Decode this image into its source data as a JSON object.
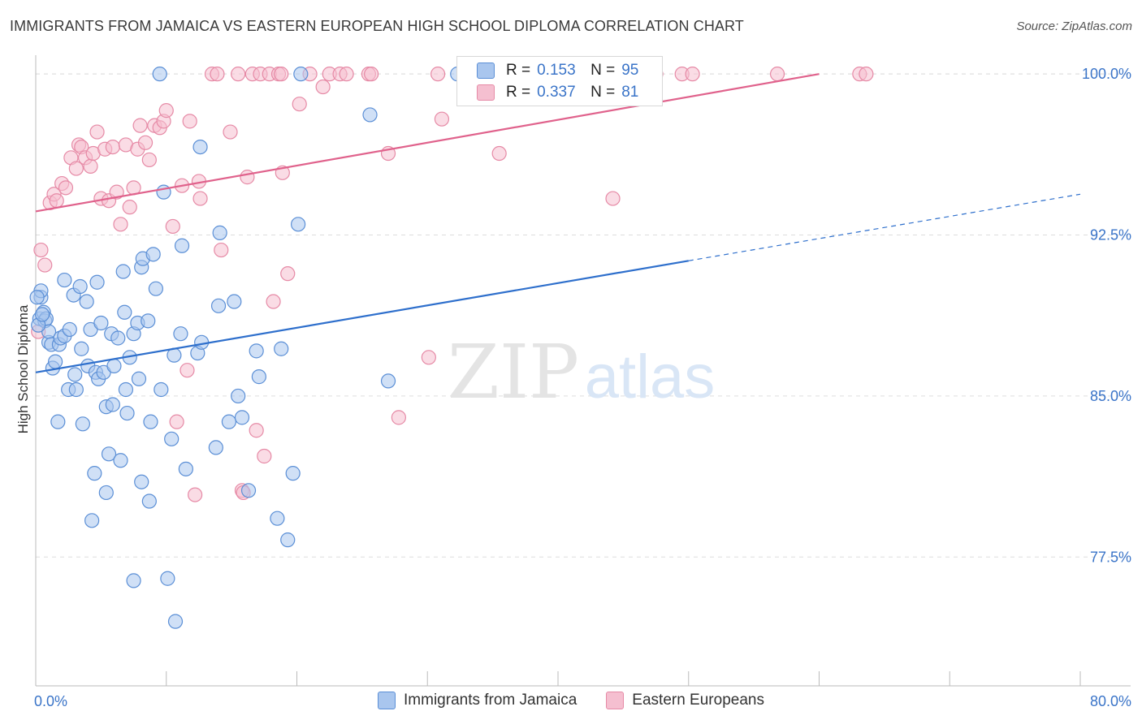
{
  "title": "IMMIGRANTS FROM JAMAICA VS EASTERN EUROPEAN HIGH SCHOOL DIPLOMA CORRELATION CHART",
  "source": "Source: ZipAtlas.com",
  "watermark": {
    "zip": "ZIP",
    "atlas": "atlas"
  },
  "colors": {
    "blue_fill": "#a9c6ee",
    "blue_stroke": "#5b8fd6",
    "blue_line": "#2e6fcc",
    "pink_fill": "#f5bfd0",
    "pink_stroke": "#e68aa6",
    "pink_line": "#e0628c",
    "tick_text": "#3a74c8",
    "grid": "#dddddd"
  },
  "stats": {
    "blue": {
      "r_label": "R =",
      "r_value": "0.153",
      "n_label": "N =",
      "n_value": "95"
    },
    "pink": {
      "r_label": "R =",
      "r_value": "0.337",
      "n_label": "N =",
      "n_value": "81"
    }
  },
  "legend": {
    "blue": "Immigrants from Jamaica",
    "pink": "Eastern Europeans"
  },
  "chart_data": {
    "type": "scatter",
    "title": "IMMIGRANTS FROM JAMAICA VS EASTERN EUROPEAN HIGH SCHOOL DIPLOMA CORRELATION CHART",
    "xlabel": "",
    "ylabel": "High School Diploma",
    "xlim": [
      0,
      80
    ],
    "ylim": [
      71.5,
      100.8
    ],
    "x_tick_labels": [
      "0.0%",
      "80.0%"
    ],
    "y_ticks": [
      77.5,
      85.0,
      92.5,
      100.0
    ],
    "y_tick_labels": [
      "77.5%",
      "85.0%",
      "92.5%",
      "100.0%"
    ],
    "grid": true,
    "legend_position": "bottom",
    "series": [
      {
        "name": "Immigrants from Jamaica",
        "color": "blue",
        "trend": {
          "x_start": 0,
          "y_start": 86.1,
          "x_solid_end": 50,
          "y_solid_end": 91.3,
          "x_end": 80,
          "y_end": 94.4
        },
        "points": [
          [
            0.3,
            88.6
          ],
          [
            0.4,
            89.6
          ],
          [
            0.4,
            89.9
          ],
          [
            0.6,
            88.9
          ],
          [
            0.7,
            88.5
          ],
          [
            0.8,
            88.6
          ],
          [
            1.0,
            87.5
          ],
          [
            1.0,
            88.0
          ],
          [
            1.2,
            87.4
          ],
          [
            1.3,
            86.3
          ],
          [
            1.5,
            86.6
          ],
          [
            1.7,
            83.8
          ],
          [
            1.8,
            87.4
          ],
          [
            1.9,
            87.7
          ],
          [
            2.2,
            90.4
          ],
          [
            2.2,
            87.8
          ],
          [
            2.5,
            85.3
          ],
          [
            2.6,
            88.1
          ],
          [
            2.9,
            89.7
          ],
          [
            3.0,
            86.0
          ],
          [
            3.1,
            85.3
          ],
          [
            3.4,
            90.1
          ],
          [
            3.5,
            87.2
          ],
          [
            3.6,
            83.7
          ],
          [
            3.9,
            89.4
          ],
          [
            4.0,
            86.4
          ],
          [
            4.2,
            88.1
          ],
          [
            4.3,
            79.2
          ],
          [
            4.5,
            81.4
          ],
          [
            4.6,
            86.1
          ],
          [
            4.7,
            90.3
          ],
          [
            4.8,
            85.8
          ],
          [
            5.0,
            88.4
          ],
          [
            5.2,
            86.1
          ],
          [
            5.4,
            84.5
          ],
          [
            5.4,
            80.5
          ],
          [
            5.6,
            82.3
          ],
          [
            5.8,
            87.9
          ],
          [
            5.9,
            84.6
          ],
          [
            6.0,
            86.4
          ],
          [
            6.3,
            87.7
          ],
          [
            6.5,
            82.0
          ],
          [
            6.7,
            90.8
          ],
          [
            6.8,
            88.9
          ],
          [
            6.9,
            85.3
          ],
          [
            7.0,
            84.2
          ],
          [
            7.2,
            86.8
          ],
          [
            7.5,
            87.9
          ],
          [
            7.5,
            76.4
          ],
          [
            7.8,
            88.4
          ],
          [
            7.9,
            85.8
          ],
          [
            8.1,
            91.0
          ],
          [
            8.1,
            81.0
          ],
          [
            8.2,
            91.4
          ],
          [
            8.6,
            88.5
          ],
          [
            8.7,
            80.1
          ],
          [
            8.8,
            83.8
          ],
          [
            9.0,
            91.6
          ],
          [
            9.2,
            90.0
          ],
          [
            9.5,
            100.0
          ],
          [
            9.6,
            85.3
          ],
          [
            9.8,
            94.5
          ],
          [
            10.1,
            76.5
          ],
          [
            10.4,
            83.0
          ],
          [
            10.6,
            86.9
          ],
          [
            10.7,
            74.5
          ],
          [
            11.1,
            87.9
          ],
          [
            11.2,
            92.0
          ],
          [
            11.5,
            81.6
          ],
          [
            12.4,
            87.0
          ],
          [
            12.6,
            96.6
          ],
          [
            12.7,
            87.5
          ],
          [
            13.8,
            82.6
          ],
          [
            14.0,
            89.2
          ],
          [
            14.1,
            92.6
          ],
          [
            14.8,
            83.8
          ],
          [
            15.2,
            89.4
          ],
          [
            15.5,
            85.0
          ],
          [
            15.8,
            84.0
          ],
          [
            16.3,
            80.6
          ],
          [
            16.9,
            87.1
          ],
          [
            17.1,
            85.9
          ],
          [
            18.5,
            79.3
          ],
          [
            18.8,
            87.2
          ],
          [
            19.3,
            78.3
          ],
          [
            19.7,
            81.4
          ],
          [
            20.1,
            93.0
          ],
          [
            20.3,
            100.0
          ],
          [
            25.6,
            98.1
          ],
          [
            27.0,
            85.7
          ],
          [
            32.3,
            100.0
          ],
          [
            42.7,
            100.0
          ],
          [
            0.1,
            89.6
          ],
          [
            0.2,
            88.3
          ],
          [
            0.5,
            88.8
          ]
        ]
      },
      {
        "name": "Eastern Europeans",
        "color": "pink",
        "trend": {
          "x_start": 0,
          "y_start": 93.6,
          "x_end": 60,
          "y_end": 100.0
        },
        "points": [
          [
            0.2,
            88.0
          ],
          [
            0.4,
            91.8
          ],
          [
            0.7,
            91.1
          ],
          [
            1.1,
            94.0
          ],
          [
            1.4,
            94.4
          ],
          [
            1.6,
            94.1
          ],
          [
            2.0,
            94.9
          ],
          [
            2.3,
            94.7
          ],
          [
            2.7,
            96.1
          ],
          [
            3.1,
            95.6
          ],
          [
            3.3,
            96.7
          ],
          [
            3.5,
            96.6
          ],
          [
            3.8,
            96.1
          ],
          [
            4.2,
            95.7
          ],
          [
            4.4,
            96.3
          ],
          [
            4.7,
            97.3
          ],
          [
            5.0,
            94.2
          ],
          [
            5.3,
            96.5
          ],
          [
            5.6,
            94.1
          ],
          [
            5.9,
            96.6
          ],
          [
            6.2,
            94.5
          ],
          [
            6.5,
            93.0
          ],
          [
            6.9,
            96.7
          ],
          [
            7.2,
            93.8
          ],
          [
            7.5,
            94.7
          ],
          [
            7.8,
            96.5
          ],
          [
            8.0,
            97.6
          ],
          [
            8.4,
            96.8
          ],
          [
            8.7,
            96.0
          ],
          [
            9.1,
            97.6
          ],
          [
            9.5,
            97.5
          ],
          [
            9.8,
            97.8
          ],
          [
            10.0,
            98.3
          ],
          [
            10.5,
            92.9
          ],
          [
            10.8,
            83.8
          ],
          [
            11.2,
            94.8
          ],
          [
            11.6,
            86.2
          ],
          [
            11.8,
            97.8
          ],
          [
            12.2,
            80.4
          ],
          [
            12.5,
            95.0
          ],
          [
            12.6,
            94.2
          ],
          [
            13.5,
            100.0
          ],
          [
            13.9,
            100.0
          ],
          [
            14.2,
            91.8
          ],
          [
            14.9,
            97.3
          ],
          [
            15.5,
            100.0
          ],
          [
            15.8,
            80.6
          ],
          [
            15.9,
            80.5
          ],
          [
            16.2,
            95.2
          ],
          [
            16.6,
            100.0
          ],
          [
            16.9,
            83.4
          ],
          [
            17.2,
            100.0
          ],
          [
            17.5,
            82.2
          ],
          [
            17.9,
            100.0
          ],
          [
            18.2,
            89.4
          ],
          [
            18.6,
            100.0
          ],
          [
            18.8,
            100.0
          ],
          [
            18.9,
            95.4
          ],
          [
            19.3,
            90.7
          ],
          [
            20.2,
            98.6
          ],
          [
            21.0,
            100.0
          ],
          [
            22.0,
            99.4
          ],
          [
            22.5,
            100.0
          ],
          [
            23.3,
            100.0
          ],
          [
            23.8,
            100.0
          ],
          [
            25.5,
            100.0
          ],
          [
            25.7,
            100.0
          ],
          [
            27.0,
            96.3
          ],
          [
            27.8,
            84.0
          ],
          [
            30.1,
            86.8
          ],
          [
            30.8,
            100.0
          ],
          [
            31.1,
            97.9
          ],
          [
            36.0,
            100.0
          ],
          [
            35.5,
            96.3
          ],
          [
            44.2,
            94.2
          ],
          [
            47.5,
            100.0
          ],
          [
            49.5,
            100.0
          ],
          [
            50.3,
            100.0
          ],
          [
            56.8,
            100.0
          ],
          [
            63.1,
            100.0
          ],
          [
            63.6,
            100.0
          ]
        ]
      }
    ]
  }
}
